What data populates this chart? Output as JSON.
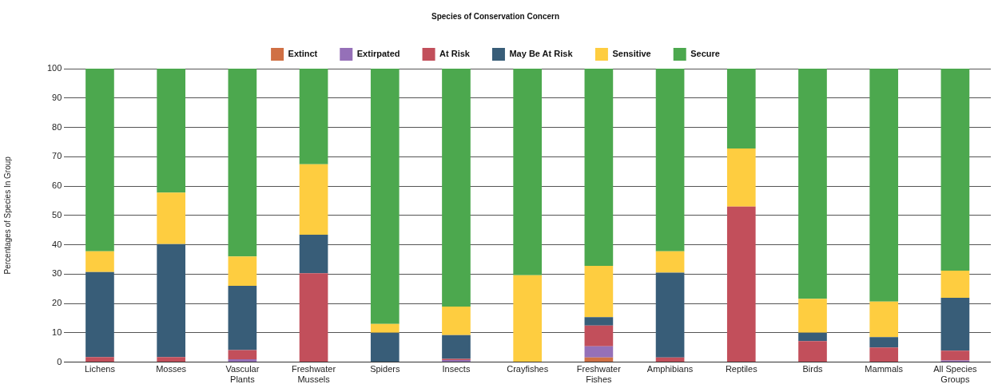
{
  "chart_data": {
    "type": "bar",
    "stacked": true,
    "ylabel": "Percentages of Species In Group",
    "legend_title": "Species of Conservation Concern",
    "legend": "top",
    "categories": [
      "Lichens",
      "Mosses",
      "Vascular Plants",
      "Freshwater Mussels",
      "Spiders",
      "Insects",
      "Crayfishes",
      "Freshwater Fishes",
      "Amphibians",
      "Reptiles",
      "Birds",
      "Mammals",
      "All Species Groups"
    ],
    "series": [
      {
        "name": "Extinct",
        "color": "#d07044",
        "values": [
          0,
          0,
          0,
          0,
          0,
          0,
          0,
          1.6,
          0,
          0,
          0,
          0,
          0
        ]
      },
      {
        "name": "Extirpated",
        "color": "#9570b8",
        "values": [
          0,
          0,
          1.0,
          0,
          0,
          0.7,
          0,
          3.8,
          0,
          0,
          0,
          0,
          0.6
        ]
      },
      {
        "name": "At Risk",
        "color": "#c24f5b",
        "values": [
          1.7,
          1.7,
          3.1,
          30.3,
          0,
          0.4,
          0,
          7.1,
          1.6,
          53.0,
          7.2,
          5.0,
          3.3
        ]
      },
      {
        "name": "May Be At Risk",
        "color": "#385d78",
        "values": [
          29.0,
          38.5,
          21.9,
          13.1,
          10.0,
          8.1,
          0,
          2.8,
          28.9,
          0,
          2.8,
          3.5,
          18.0
        ]
      },
      {
        "name": "Sensitive",
        "color": "#fecd40",
        "values": [
          7.1,
          17.6,
          10.0,
          24.0,
          3.0,
          9.7,
          29.6,
          17.5,
          7.3,
          19.8,
          11.6,
          12.1,
          9.3
        ]
      },
      {
        "name": "Secure",
        "color": "#4ca84e",
        "values": [
          62.2,
          42.2,
          64.0,
          32.6,
          87.0,
          81.1,
          70.4,
          67.2,
          62.2,
          27.2,
          78.4,
          79.4,
          68.8
        ]
      }
    ],
    "ylim": [
      0,
      100
    ],
    "yticks": [
      0,
      10,
      20,
      30,
      40,
      50,
      60,
      70,
      80,
      90,
      100
    ],
    "grid": "y"
  }
}
